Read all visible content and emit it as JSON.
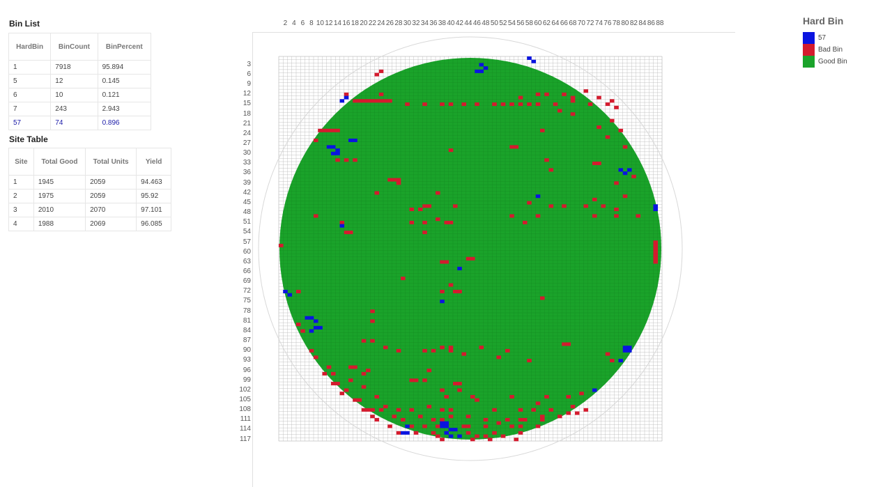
{
  "bin_list": {
    "title": "Bin List",
    "headers": [
      "HardBin",
      "BinCount",
      "BinPercent"
    ],
    "rows": [
      [
        "1",
        "7918",
        "95.894"
      ],
      [
        "5",
        "12",
        "0.145"
      ],
      [
        "6",
        "10",
        "0.121"
      ],
      [
        "7",
        "243",
        "2.943"
      ],
      [
        "57",
        "74",
        "0.896"
      ]
    ]
  },
  "site_table": {
    "title": "Site Table",
    "headers": [
      "Site",
      "Total Good",
      "Total Units",
      "Yield"
    ],
    "rows": [
      [
        "1",
        "1945",
        "2059",
        "94.463"
      ],
      [
        "2",
        "1975",
        "2059",
        "95.92"
      ],
      [
        "3",
        "2010",
        "2070",
        "97.101"
      ],
      [
        "4",
        "1988",
        "2069",
        "96.085"
      ]
    ]
  },
  "wafer_map": {
    "column_labels": [
      "2",
      "4",
      "6",
      "8",
      "10",
      "12",
      "14",
      "16",
      "18",
      "20",
      "22",
      "24",
      "26",
      "28",
      "30",
      "32",
      "34",
      "36",
      "38",
      "40",
      "42",
      "44",
      "46",
      "48",
      "50",
      "52",
      "54",
      "56",
      "58",
      "60",
      "62",
      "64",
      "66",
      "68",
      "70",
      "72",
      "74",
      "76",
      "78",
      "80",
      "82",
      "84",
      "86",
      "88"
    ],
    "row_labels": [
      "3",
      "6",
      "9",
      "12",
      "15",
      "18",
      "21",
      "24",
      "27",
      "30",
      "33",
      "36",
      "39",
      "42",
      "45",
      "48",
      "51",
      "54",
      "57",
      "60",
      "63",
      "66",
      "69",
      "72",
      "75",
      "78",
      "81",
      "84",
      "87",
      "90",
      "93",
      "96",
      "99",
      "102",
      "105",
      "108",
      "111",
      "114",
      "117"
    ],
    "columns": 88,
    "rows": 117,
    "colors": {
      "good": "#1aa32a",
      "bad": "#d41b2e",
      "bin57": "#0a14e0",
      "grid": "#bdbdbd",
      "outline": "#d8d8d8"
    },
    "bin57_dies": [
      [
        47,
        3
      ],
      [
        48,
        4
      ],
      [
        46,
        5
      ],
      [
        47,
        5
      ],
      [
        58,
        1
      ],
      [
        59,
        2
      ],
      [
        16,
        13
      ],
      [
        15,
        14
      ],
      [
        13,
        28
      ],
      [
        14,
        29
      ],
      [
        13,
        30
      ],
      [
        14,
        30
      ],
      [
        12,
        28
      ],
      [
        17,
        26
      ],
      [
        18,
        26
      ],
      [
        79,
        35
      ],
      [
        80,
        36
      ],
      [
        81,
        35
      ],
      [
        60,
        43
      ],
      [
        87,
        46
      ],
      [
        87,
        47
      ],
      [
        15,
        52
      ],
      [
        42,
        65
      ],
      [
        2,
        72
      ],
      [
        3,
        73
      ],
      [
        38,
        75
      ],
      [
        7,
        80
      ],
      [
        8,
        80
      ],
      [
        9,
        81
      ],
      [
        9,
        83
      ],
      [
        10,
        83
      ],
      [
        8,
        84
      ],
      [
        80,
        89
      ],
      [
        81,
        89
      ],
      [
        80,
        90
      ],
      [
        81,
        90
      ],
      [
        79,
        93
      ],
      [
        73,
        102
      ],
      [
        30,
        113
      ],
      [
        29,
        115
      ],
      [
        30,
        115
      ],
      [
        38,
        112
      ],
      [
        39,
        112
      ],
      [
        38,
        113
      ],
      [
        39,
        113
      ],
      [
        40,
        114
      ],
      [
        41,
        114
      ],
      [
        39,
        115
      ],
      [
        40,
        116
      ],
      [
        42,
        116
      ]
    ],
    "bad_dies": [
      [
        24,
        5
      ],
      [
        23,
        6
      ],
      [
        16,
        12
      ],
      [
        18,
        14
      ],
      [
        19,
        14
      ],
      [
        20,
        14
      ],
      [
        21,
        14
      ],
      [
        22,
        14
      ],
      [
        23,
        14
      ],
      [
        24,
        14
      ],
      [
        25,
        14
      ],
      [
        26,
        14
      ],
      [
        24,
        12
      ],
      [
        30,
        15
      ],
      [
        34,
        15
      ],
      [
        38,
        15
      ],
      [
        40,
        15
      ],
      [
        43,
        15
      ],
      [
        46,
        15
      ],
      [
        50,
        15
      ],
      [
        52,
        15
      ],
      [
        54,
        15
      ],
      [
        56,
        15
      ],
      [
        58,
        15
      ],
      [
        60,
        15
      ],
      [
        64,
        15
      ],
      [
        68,
        14
      ],
      [
        72,
        15
      ],
      [
        76,
        15
      ],
      [
        56,
        13
      ],
      [
        60,
        12
      ],
      [
        62,
        12
      ],
      [
        66,
        12
      ],
      [
        68,
        13
      ],
      [
        71,
        11
      ],
      [
        74,
        13
      ],
      [
        77,
        14
      ],
      [
        78,
        16
      ],
      [
        65,
        17
      ],
      [
        68,
        18
      ],
      [
        77,
        20
      ],
      [
        74,
        22
      ],
      [
        79,
        23
      ],
      [
        61,
        23
      ],
      [
        76,
        25
      ],
      [
        80,
        28
      ],
      [
        54,
        28
      ],
      [
        55,
        28
      ],
      [
        40,
        29
      ],
      [
        9,
        26
      ],
      [
        10,
        23
      ],
      [
        11,
        23
      ],
      [
        12,
        23
      ],
      [
        13,
        23
      ],
      [
        14,
        23
      ],
      [
        14,
        32
      ],
      [
        16,
        32
      ],
      [
        18,
        32
      ],
      [
        73,
        33
      ],
      [
        74,
        33
      ],
      [
        62,
        32
      ],
      [
        63,
        35
      ],
      [
        78,
        39
      ],
      [
        82,
        37
      ],
      [
        80,
        43
      ],
      [
        26,
        38
      ],
      [
        27,
        38
      ],
      [
        28,
        38
      ],
      [
        28,
        39
      ],
      [
        23,
        42
      ],
      [
        37,
        42
      ],
      [
        34,
        46
      ],
      [
        35,
        46
      ],
      [
        31,
        47
      ],
      [
        33,
        47
      ],
      [
        58,
        45
      ],
      [
        63,
        46
      ],
      [
        66,
        46
      ],
      [
        71,
        46
      ],
      [
        75,
        46
      ],
      [
        73,
        44
      ],
      [
        78,
        47
      ],
      [
        41,
        46
      ],
      [
        60,
        49
      ],
      [
        73,
        49
      ],
      [
        78,
        49
      ],
      [
        83,
        49
      ],
      [
        9,
        49
      ],
      [
        15,
        51
      ],
      [
        31,
        51
      ],
      [
        34,
        51
      ],
      [
        37,
        50
      ],
      [
        39,
        51
      ],
      [
        40,
        51
      ],
      [
        54,
        49
      ],
      [
        57,
        51
      ],
      [
        16,
        54
      ],
      [
        17,
        54
      ],
      [
        34,
        54
      ],
      [
        1,
        58
      ],
      [
        87,
        57
      ],
      [
        87,
        58
      ],
      [
        87,
        59
      ],
      [
        87,
        60
      ],
      [
        87,
        61
      ],
      [
        87,
        62
      ],
      [
        87,
        63
      ],
      [
        38,
        63
      ],
      [
        39,
        63
      ],
      [
        44,
        62
      ],
      [
        45,
        62
      ],
      [
        29,
        68
      ],
      [
        40,
        70
      ],
      [
        38,
        72
      ],
      [
        41,
        72
      ],
      [
        42,
        72
      ],
      [
        5,
        72
      ],
      [
        61,
        74
      ],
      [
        22,
        78
      ],
      [
        22,
        81
      ],
      [
        5,
        82
      ],
      [
        6,
        84
      ],
      [
        20,
        87
      ],
      [
        22,
        87
      ],
      [
        25,
        89
      ],
      [
        28,
        90
      ],
      [
        34,
        90
      ],
      [
        36,
        90
      ],
      [
        38,
        89
      ],
      [
        40,
        90
      ],
      [
        40,
        89
      ],
      [
        47,
        89
      ],
      [
        53,
        90
      ],
      [
        66,
        88
      ],
      [
        67,
        88
      ],
      [
        51,
        92
      ],
      [
        43,
        91
      ],
      [
        58,
        93
      ],
      [
        76,
        91
      ],
      [
        77,
        93
      ],
      [
        8,
        90
      ],
      [
        9,
        92
      ],
      [
        12,
        95
      ],
      [
        17,
        95
      ],
      [
        18,
        95
      ],
      [
        20,
        97
      ],
      [
        21,
        96
      ],
      [
        35,
        96
      ],
      [
        11,
        97
      ],
      [
        13,
        97
      ],
      [
        13,
        100
      ],
      [
        14,
        100
      ],
      [
        16,
        102
      ],
      [
        17,
        99
      ],
      [
        31,
        99
      ],
      [
        32,
        99
      ],
      [
        34,
        99
      ],
      [
        41,
        100
      ],
      [
        42,
        100
      ],
      [
        42,
        102
      ],
      [
        38,
        102
      ],
      [
        20,
        101
      ],
      [
        15,
        103
      ],
      [
        18,
        105
      ],
      [
        19,
        105
      ],
      [
        23,
        104
      ],
      [
        39,
        104
      ],
      [
        45,
        104
      ],
      [
        54,
        104
      ],
      [
        62,
        104
      ],
      [
        67,
        104
      ],
      [
        70,
        103
      ],
      [
        60,
        106
      ],
      [
        46,
        105
      ],
      [
        20,
        108
      ],
      [
        21,
        108
      ],
      [
        22,
        108
      ],
      [
        24,
        108
      ],
      [
        25,
        107
      ],
      [
        28,
        108
      ],
      [
        31,
        108
      ],
      [
        35,
        107
      ],
      [
        38,
        108
      ],
      [
        40,
        108
      ],
      [
        50,
        108
      ],
      [
        56,
        108
      ],
      [
        59,
        108
      ],
      [
        68,
        107
      ],
      [
        67,
        109
      ],
      [
        63,
        108
      ],
      [
        22,
        110
      ],
      [
        23,
        111
      ],
      [
        27,
        110
      ],
      [
        29,
        111
      ],
      [
        33,
        110
      ],
      [
        36,
        111
      ],
      [
        38,
        111
      ],
      [
        40,
        110
      ],
      [
        44,
        110
      ],
      [
        48,
        111
      ],
      [
        53,
        111
      ],
      [
        56,
        111
      ],
      [
        57,
        111
      ],
      [
        61,
        111
      ],
      [
        61,
        110
      ],
      [
        65,
        110
      ],
      [
        69,
        109
      ],
      [
        71,
        108
      ],
      [
        26,
        113
      ],
      [
        31,
        113
      ],
      [
        34,
        113
      ],
      [
        37,
        113
      ],
      [
        43,
        113
      ],
      [
        44,
        113
      ],
      [
        48,
        113
      ],
      [
        51,
        112
      ],
      [
        54,
        113
      ],
      [
        56,
        113
      ],
      [
        60,
        113
      ],
      [
        28,
        115
      ],
      [
        32,
        115
      ],
      [
        36,
        115
      ],
      [
        37,
        116
      ],
      [
        44,
        115
      ],
      [
        46,
        116
      ],
      [
        48,
        116
      ],
      [
        50,
        115
      ],
      [
        52,
        116
      ],
      [
        56,
        115
      ],
      [
        38,
        117
      ],
      [
        45,
        117
      ],
      [
        49,
        117
      ],
      [
        55,
        117
      ]
    ]
  },
  "legend": {
    "title": "Hard Bin",
    "items": [
      {
        "label": "57",
        "color": "#0a14e0"
      },
      {
        "label": "Bad Bin",
        "color": "#d41b2e"
      },
      {
        "label": "Good Bin",
        "color": "#1aa32a"
      }
    ]
  }
}
